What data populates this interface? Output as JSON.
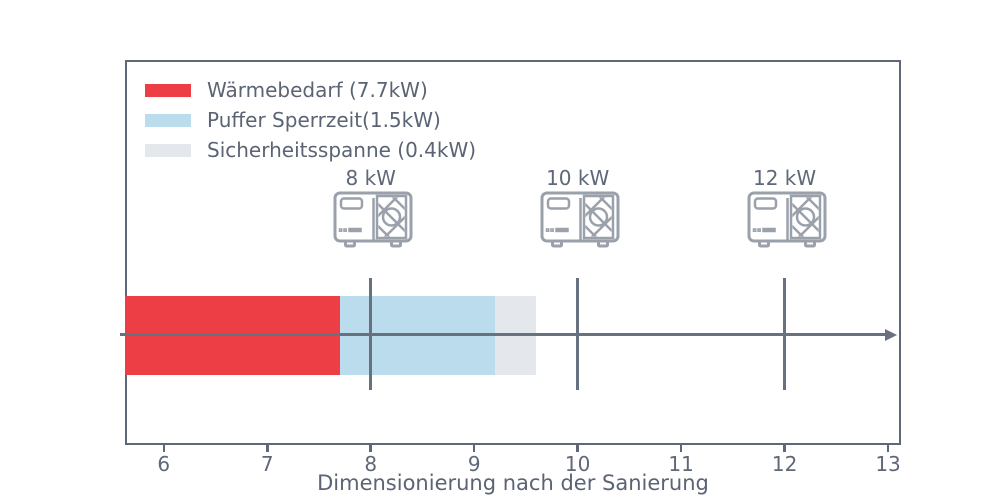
{
  "figure": {
    "background": "#ffffff",
    "frame_color": "#5f6878",
    "text_color": "#5b6474",
    "line_color": "#68717f",
    "icon_color": "#9aa1ab"
  },
  "legend": {
    "position": "upper-left",
    "items": [
      {
        "label": "Wärmebedarf (7.7kW)",
        "color": "#ed3e45"
      },
      {
        "label": "Puffer Sperrzeit(1.5kW)",
        "color": "#badcec"
      },
      {
        "label": "Sicherheitsspanne (0.4kW)",
        "color": "#e4e7eb"
      }
    ]
  },
  "chart_data": {
    "type": "bar",
    "orientation": "horizontal",
    "title": "",
    "xlabel": "Dimensionierung nach der Sanierung",
    "ylabel": "",
    "xlim": [
      5.625,
      13.125
    ],
    "grid": false,
    "legend_position": "upper-left",
    "x_ticks": [
      {
        "label": "6",
        "value": 6
      },
      {
        "label": "7",
        "value": 7
      },
      {
        "label": "8",
        "value": 8
      },
      {
        "label": "9",
        "value": 9
      },
      {
        "label": "10",
        "value": 10
      },
      {
        "label": "11",
        "value": 11
      },
      {
        "label": "12",
        "value": 12
      },
      {
        "label": "13",
        "value": 13
      }
    ],
    "bar": {
      "axis_start": 5.625,
      "total_kw": 9.6,
      "segments": [
        {
          "name": "Wärmebedarf",
          "value_kw": 7.7,
          "from": 5.625,
          "to": 7.7,
          "color": "#ed3e45"
        },
        {
          "name": "Puffer Sperrzeit",
          "value_kw": 1.5,
          "from": 7.7,
          "to": 9.2,
          "color": "#badcec"
        },
        {
          "name": "Sicherheitsspanne",
          "value_kw": 0.4,
          "from": 9.2,
          "to": 9.6,
          "color": "#e4e7eb"
        }
      ]
    },
    "markers": [
      {
        "label": "8 kW",
        "value": 8,
        "icon": "heat-pump-icon"
      },
      {
        "label": "10 kW",
        "value": 10,
        "icon": "heat-pump-icon"
      },
      {
        "label": "12 kW",
        "value": 12,
        "icon": "heat-pump-icon"
      }
    ]
  }
}
